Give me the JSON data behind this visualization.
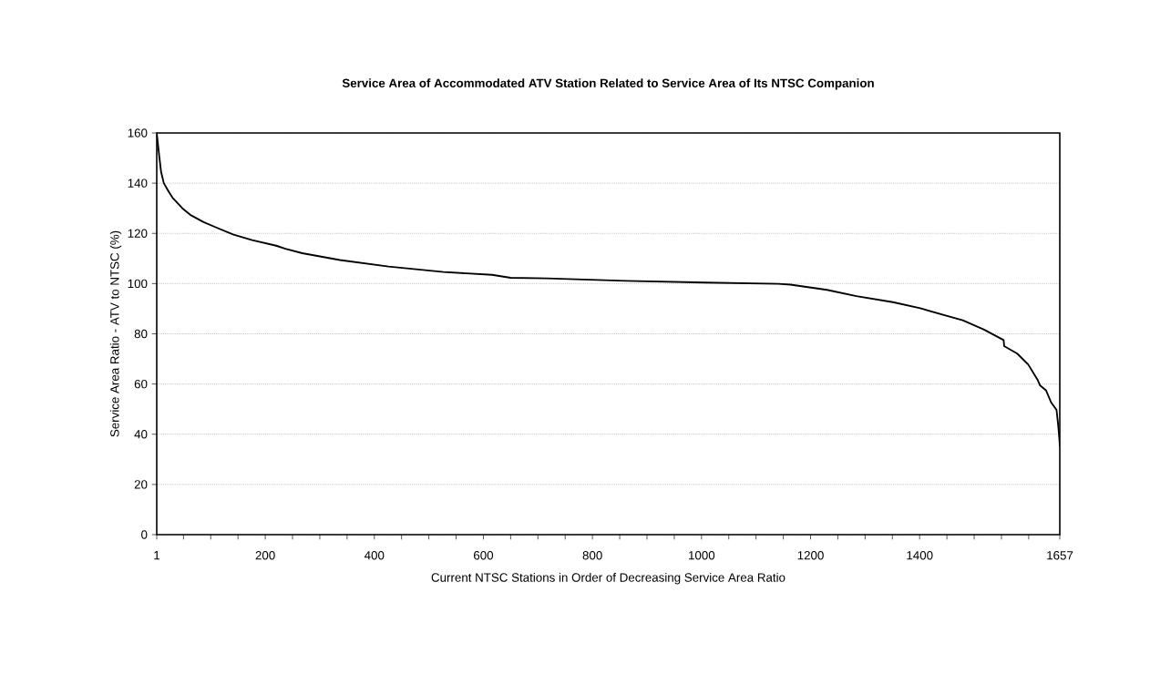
{
  "chart_data": {
    "type": "line",
    "title": "Service Area of Accommodated ATV Station Related to Service Area of Its NTSC Companion",
    "xlabel": "Current NTSC Stations in Order of Decreasing Service Area Ratio",
    "ylabel": "Service Area Ratio - ATV to NTSC (%)",
    "x": [
      1,
      3,
      6,
      9,
      14,
      23,
      30,
      48,
      64,
      87,
      115,
      142,
      176,
      220,
      237,
      268,
      337,
      426,
      527,
      616,
      650,
      717,
      862,
      1007,
      1141,
      1163,
      1230,
      1284,
      1351,
      1401,
      1446,
      1479,
      1518,
      1554,
      1555,
      1579,
      1599,
      1616,
      1621,
      1632,
      1641,
      1651,
      1654,
      1656,
      1657
    ],
    "series": [
      {
        "color": "#000000",
        "values": [
          160,
          156,
          150,
          144.5,
          140,
          136.6,
          134.2,
          130,
          127.2,
          124.5,
          121.9,
          119.5,
          117.3,
          115.1,
          113.9,
          112.1,
          109.4,
          106.8,
          104.6,
          103.5,
          102.3,
          102.1,
          101.1,
          100.4,
          99.9,
          99.6,
          97.5,
          95,
          92.6,
          90.2,
          87.4,
          85.4,
          81.7,
          77.5,
          75.1,
          72.1,
          67.8,
          61.8,
          59.4,
          57.4,
          52.7,
          49.7,
          43.7,
          38.8,
          35.2
        ]
      }
    ],
    "xlim": [
      1,
      1657
    ],
    "ylim": [
      0,
      160
    ],
    "xticks": [
      1,
      {
        "value": 50,
        "label": null
      },
      {
        "value": 100,
        "label": null
      },
      {
        "value": 150,
        "label": null
      },
      200,
      {
        "value": 250,
        "label": null
      },
      {
        "value": 300,
        "label": null
      },
      {
        "value": 350,
        "label": null
      },
      400,
      {
        "value": 450,
        "label": null
      },
      {
        "value": 500,
        "label": null
      },
      {
        "value": 550,
        "label": null
      },
      600,
      {
        "value": 650,
        "label": null
      },
      {
        "value": 700,
        "label": null
      },
      {
        "value": 750,
        "label": null
      },
      800,
      {
        "value": 850,
        "label": null
      },
      {
        "value": 900,
        "label": null
      },
      {
        "value": 950,
        "label": null
      },
      1000,
      {
        "value": 1050,
        "label": null
      },
      {
        "value": 1100,
        "label": null
      },
      {
        "value": 1150,
        "label": null
      },
      1200,
      {
        "value": 1250,
        "label": null
      },
      {
        "value": 1300,
        "label": null
      },
      {
        "value": 1350,
        "label": null
      },
      1400,
      {
        "value": 1450,
        "label": null
      },
      {
        "value": 1500,
        "label": null
      },
      {
        "value": 1550,
        "label": null
      },
      {
        "value": 1600,
        "label": null
      },
      1657
    ],
    "yticks": [
      0,
      20,
      40,
      60,
      80,
      100,
      120,
      140,
      160
    ],
    "grid": "y",
    "marker": "none",
    "line_style": "solid"
  }
}
